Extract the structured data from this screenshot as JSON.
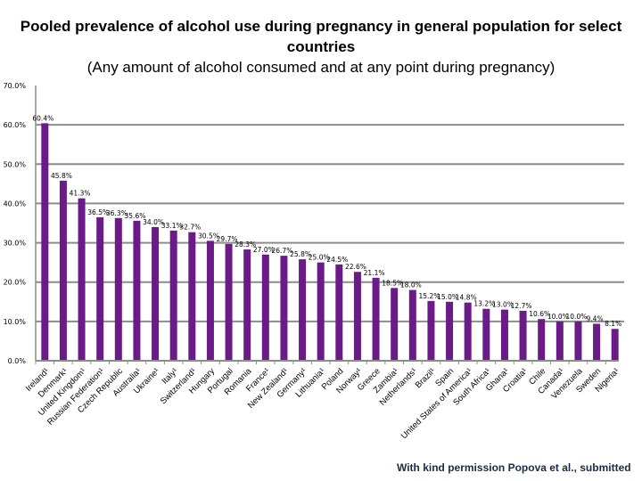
{
  "chart_data": {
    "type": "bar",
    "title": "Pooled prevalence of alcohol use during pregnancy in general population for select countries",
    "subtitle": "(Any amount of alcohol consumed and at any point during pregnancy)",
    "categories": [
      "Ireland¹",
      "Denmark¹",
      "United Kingdom¹",
      "Russian Federation¹",
      "Czech Republic",
      "Australia¹",
      "Ukraine¹",
      "Italy¹",
      "Switzerland¹",
      "Hungary",
      "Portugal",
      "Romania",
      "France¹",
      "New Zealand¹",
      "Germany¹",
      "Lithuania¹",
      "Poland",
      "Norway¹",
      "Greece",
      "Zambia¹",
      "Netherlands¹",
      "Brazil¹",
      "Spain",
      "United States of America¹",
      "South Africa¹",
      "Ghana¹",
      "Croatia¹",
      "Chile",
      "Canada¹",
      "Venezuela",
      "Sweden",
      "Nigeria¹"
    ],
    "values": [
      60.4,
      45.8,
      41.3,
      36.5,
      36.3,
      35.6,
      34.0,
      33.1,
      32.7,
      30.5,
      29.7,
      28.3,
      27.0,
      26.7,
      25.8,
      25.0,
      24.5,
      22.6,
      21.1,
      18.5,
      18.0,
      15.2,
      15.0,
      14.8,
      13.2,
      13.0,
      12.7,
      10.6,
      10.0,
      10.0,
      9.4,
      8.1
    ],
    "data_labels": [
      "60.4%",
      "45.8%",
      "41.3%",
      "36.5%",
      "36.3%",
      "35.6%",
      "34.0%",
      "33.1%",
      "32.7%",
      "30.5%",
      "29.7%",
      "28.3%",
      "27.0%",
      "26.7%",
      "25.8%",
      "25.0%",
      "24.5%",
      "22.6%",
      "21.1%",
      "18.5%",
      "18.0%",
      "15.2%",
      "15.0%",
      "14.8%",
      "13.2%",
      "13.0%",
      "12.7%",
      "10.6%",
      "10.0%",
      "10.0%",
      "9.4%",
      "8.1%"
    ],
    "y_ticks": [
      "0.0%",
      "10.0%",
      "20.0%",
      "30.0%",
      "40.0%",
      "50.0%",
      "60.0%",
      "70.0%"
    ],
    "ylim": [
      0,
      70
    ],
    "grid": true,
    "bar_color": "#6a1b87",
    "grid_color": "#8c8c8c",
    "legend": "none"
  },
  "credit": "With kind  permission  Popova et al., submitted"
}
